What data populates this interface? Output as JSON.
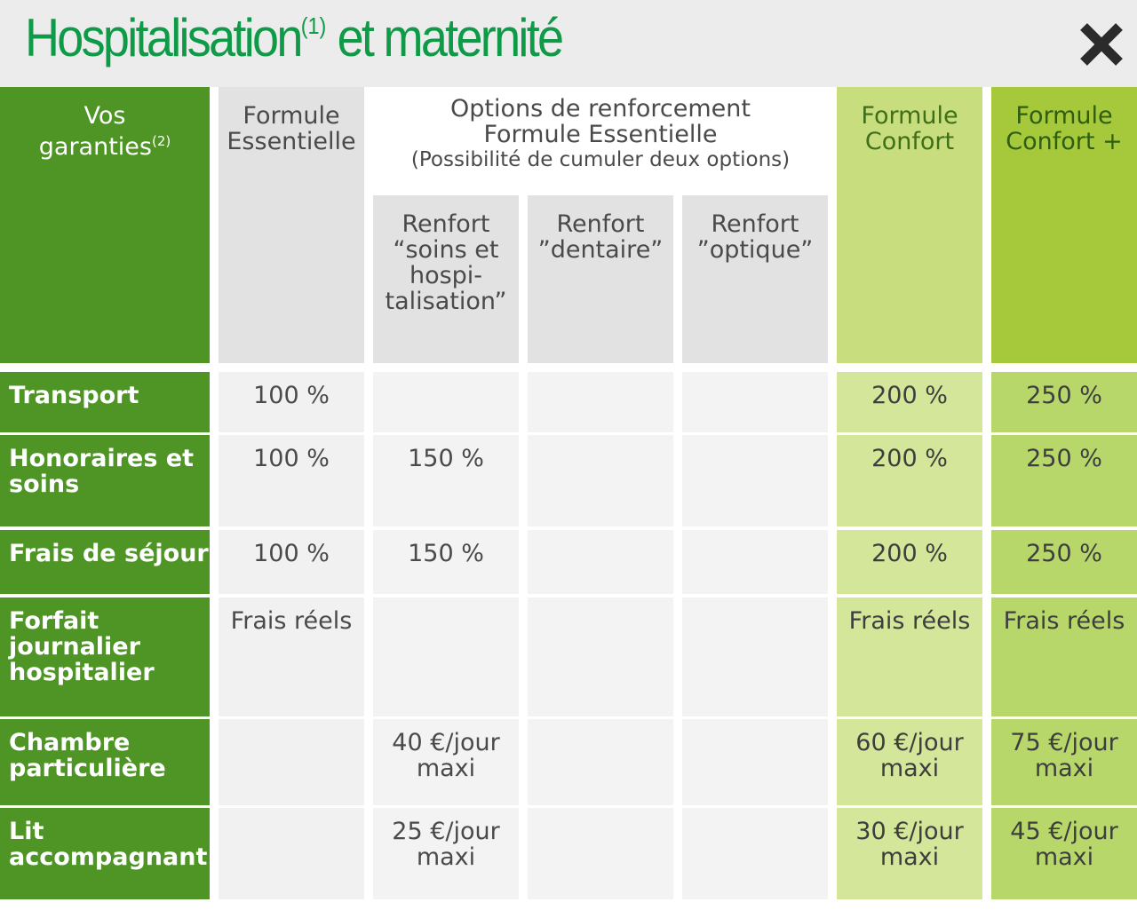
{
  "header": {
    "title_main": "Hospitalisation",
    "title_sup": "(1)",
    "title_rest": " et maternité",
    "close_icon": "close-icon"
  },
  "table": {
    "label_header_1": "Vos",
    "label_header_2": "garanties",
    "label_header_sup": "(2)",
    "col_essentielle": [
      "Formule",
      "Essentielle"
    ],
    "options_title_1": "Options de renforcement",
    "options_title_2": "Formule Essentielle",
    "options_note": "(Possibilité de cumuler deux options)",
    "renfort_soins": [
      "Renfort",
      "“soins et",
      "hospi-",
      "talisation”"
    ],
    "renfort_dentaire": [
      "Renfort",
      "”dentaire”"
    ],
    "renfort_optique": [
      "Renfort",
      "”optique”"
    ],
    "col_confort": [
      "Formule",
      "Confort"
    ],
    "col_confort_plus": [
      "Formule",
      "Confort +"
    ],
    "rows": [
      {
        "label": [
          "Transport"
        ],
        "ess": [
          "100 %"
        ],
        "soins": [],
        "dentaire": [],
        "optique": [],
        "confort": [
          "200 %"
        ],
        "confort_plus": [
          "250 %"
        ]
      },
      {
        "label": [
          "Honoraires et",
          "soins"
        ],
        "ess": [
          "100 %"
        ],
        "soins": [
          "150 %"
        ],
        "dentaire": [],
        "optique": [],
        "confort": [
          "200 %"
        ],
        "confort_plus": [
          "250 %"
        ]
      },
      {
        "label": [
          "Frais de séjour"
        ],
        "ess": [
          "100 %"
        ],
        "soins": [
          "150 %"
        ],
        "dentaire": [],
        "optique": [],
        "confort": [
          "200 %"
        ],
        "confort_plus": [
          "250 %"
        ]
      },
      {
        "label": [
          "Forfait",
          "journalier",
          "hospitalier"
        ],
        "ess": [
          "Frais réels"
        ],
        "soins": [],
        "dentaire": [],
        "optique": [],
        "confort": [
          "Frais réels"
        ],
        "confort_plus": [
          "Frais réels"
        ]
      },
      {
        "label": [
          "Chambre",
          "particulière"
        ],
        "ess": [],
        "soins": [
          "40 €/jour",
          "maxi"
        ],
        "dentaire": [],
        "optique": [],
        "confort": [
          "60 €/jour",
          "maxi"
        ],
        "confort_plus": [
          "75 €/jour",
          "maxi"
        ]
      },
      {
        "label": [
          "Lit",
          "accompagnant"
        ],
        "ess": [],
        "soins": [
          "25 €/jour",
          "maxi"
        ],
        "dentaire": [],
        "optique": [],
        "confort": [
          "30 €/jour",
          "maxi"
        ],
        "confort_plus": [
          "45 €/jour",
          "maxi"
        ]
      }
    ]
  }
}
